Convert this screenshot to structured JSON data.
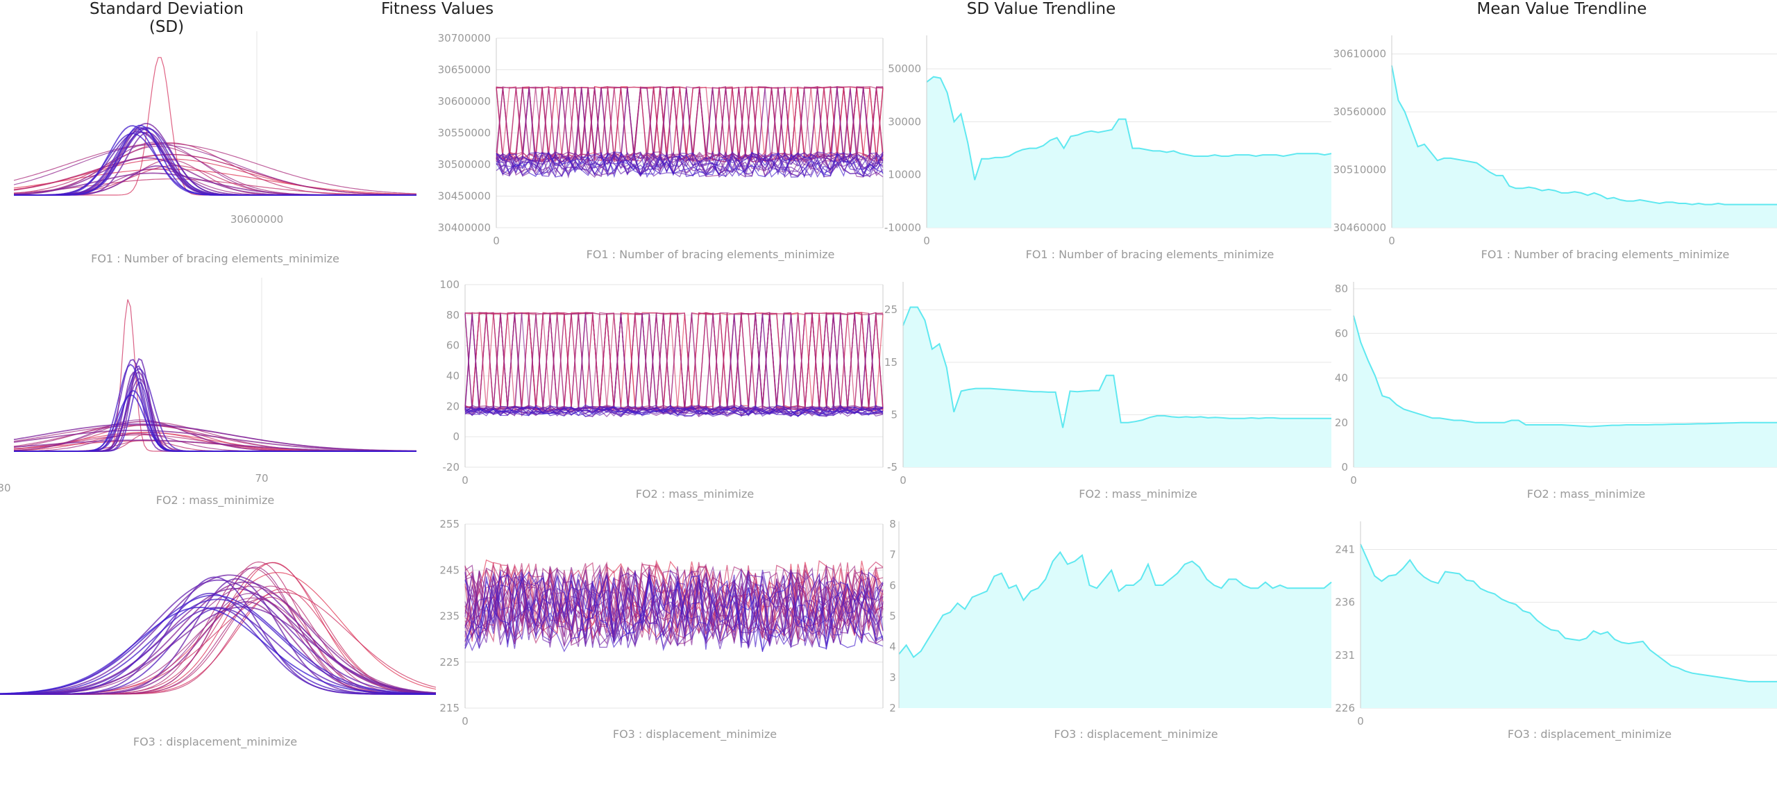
{
  "columns": {
    "sd": "Standard Deviation (SD)",
    "fitness": "Fitness Values",
    "sd_trend": "SD Value Trendline",
    "mean_trend": "Mean Value Trendline"
  },
  "colors": {
    "high": "#e03050",
    "low": "#3a1ad0",
    "trend_line": "#5fe8f0",
    "trend_fill": "#dcfcfc",
    "grid": "#e6e6e6",
    "axis": "#cccccc"
  },
  "chart_data": [
    {
      "id": "fo1",
      "label": "FO1 : Number of bracing elements_minimize",
      "sd": {
        "type": "area",
        "tick_label": "30600000"
      },
      "fitness": {
        "type": "line",
        "y_ticks": [
          "30700000",
          "30650000",
          "30600000",
          "30550000",
          "30500000",
          "30450000",
          "30400000"
        ],
        "ylim": [
          30400000,
          30700000
        ],
        "x_tick": "0",
        "x_count": 60,
        "high_level": 30622000,
        "low_levels": [
          30520000,
          30480000
        ]
      },
      "sd_trend": {
        "type": "area",
        "y_ticks": [
          "50000",
          "30000",
          "10000",
          "-10000"
        ],
        "ylim": [
          -10000,
          60000
        ],
        "x_tick": "0",
        "values": [
          45000,
          47000,
          46500,
          41000,
          30000,
          33000,
          22000,
          8000,
          16000,
          16000,
          16500,
          16500,
          17000,
          18500,
          19500,
          20000,
          20000,
          21000,
          23000,
          24000,
          20000,
          24500,
          25000,
          26000,
          26500,
          26000,
          26500,
          27000,
          31000,
          31000,
          20000,
          20000,
          19500,
          19000,
          19000,
          18500,
          19000,
          18000,
          17500,
          17000,
          17000,
          17000,
          17500,
          17000,
          17000,
          17500,
          17500,
          17500,
          17000,
          17500,
          17500,
          17500,
          17000,
          17500,
          18000,
          18000,
          18000,
          18000,
          17500,
          18000
        ]
      },
      "mean_trend": {
        "type": "area",
        "y_ticks": [
          "30610000",
          "30560000",
          "30510000",
          "30460000"
        ],
        "ylim": [
          30460000,
          30620000
        ],
        "x_tick": "0",
        "values": [
          30600000,
          30570000,
          30560000,
          30545000,
          30530000,
          30532000,
          30525000,
          30518000,
          30520000,
          30520000,
          30519000,
          30518000,
          30517000,
          30516000,
          30512000,
          30508000,
          30505000,
          30505000,
          30496000,
          30494000,
          30494000,
          30495000,
          30494000,
          30492000,
          30493000,
          30492000,
          30490000,
          30490000,
          30491000,
          30490000,
          30488000,
          30490000,
          30488000,
          30485000,
          30486000,
          30484000,
          30483000,
          30483000,
          30484000,
          30483000,
          30482000,
          30481000,
          30482000,
          30482000,
          30481000,
          30481000,
          30480000,
          30481000,
          30480000,
          30480000,
          30481000,
          30480000,
          30480000,
          30480000,
          30480000,
          30480000,
          30480000,
          30480000,
          30480000,
          30480000
        ]
      }
    },
    {
      "id": "fo2",
      "label": "FO2 : mass_minimize",
      "sd": {
        "type": "area",
        "tick_label_left": "30",
        "tick_label": "70"
      },
      "fitness": {
        "type": "line",
        "y_ticks": [
          "100",
          "80",
          "60",
          "40",
          "20",
          "0",
          "-20"
        ],
        "ylim": [
          -20,
          100
        ],
        "x_tick": "0",
        "x_count": 60,
        "high_level": 81,
        "low_levels": [
          20,
          14
        ]
      },
      "sd_trend": {
        "type": "area",
        "y_ticks": [
          "25",
          "15",
          "5",
          "-5"
        ],
        "ylim": [
          -5,
          29
        ],
        "x_tick": "0",
        "values": [
          22,
          25.5,
          25.5,
          23,
          17.5,
          18.5,
          14,
          5.5,
          9.5,
          9.8,
          10,
          10,
          10,
          9.9,
          9.8,
          9.7,
          9.6,
          9.5,
          9.4,
          9.4,
          9.3,
          9.3,
          2.5,
          9.5,
          9.4,
          9.5,
          9.6,
          9.6,
          12.5,
          12.5,
          3.5,
          3.5,
          3.7,
          4,
          4.5,
          4.8,
          4.8,
          4.6,
          4.5,
          4.6,
          4.5,
          4.6,
          4.4,
          4.5,
          4.4,
          4.3,
          4.3,
          4.3,
          4.4,
          4.3,
          4.4,
          4.4,
          4.3,
          4.3,
          4.3,
          4.3,
          4.3,
          4.3,
          4.3,
          4.3
        ]
      },
      "mean_trend": {
        "type": "area",
        "y_ticks": [
          "80",
          "60",
          "40",
          "20",
          "0"
        ],
        "ylim": [
          0,
          80
        ],
        "x_tick": "0",
        "values": [
          68,
          56,
          48,
          41,
          32,
          31,
          28,
          26,
          25,
          24,
          23,
          22,
          22,
          21.5,
          21,
          21,
          20.5,
          20,
          20,
          20,
          20,
          20,
          21,
          21,
          19,
          19,
          19,
          19,
          19,
          19,
          18.8,
          18.6,
          18.4,
          18.2,
          18.4,
          18.6,
          18.8,
          18.8,
          19,
          19,
          19,
          19,
          19.1,
          19.1,
          19.2,
          19.3,
          19.3,
          19.4,
          19.5,
          19.5,
          19.6,
          19.7,
          19.8,
          19.9,
          20,
          20,
          20,
          20,
          20,
          20
        ]
      }
    },
    {
      "id": "fo3",
      "label": "FO3 : displacement_minimize",
      "sd": {
        "type": "area"
      },
      "fitness": {
        "type": "line",
        "y_ticks": [
          "255",
          "245",
          "235",
          "225",
          "215"
        ],
        "ylim": [
          215,
          255
        ],
        "y2_ticks": [
          "8",
          "7",
          "6",
          "5",
          "4",
          "3",
          "2"
        ],
        "y2lim": [
          2,
          8
        ],
        "x_tick": "0",
        "x_count": 60,
        "center": 236,
        "spread": 8
      },
      "sd_trend": {
        "type": "area",
        "y_ticks": [],
        "ylim": [
          2,
          8
        ],
        "x_tick": "",
        "values": [
          3.8,
          4.1,
          3.7,
          3.9,
          4.3,
          4.7,
          5.1,
          5.2,
          5.5,
          5.3,
          5.7,
          5.8,
          5.9,
          6.4,
          6.5,
          6.0,
          6.1,
          5.6,
          5.9,
          6.0,
          6.3,
          6.9,
          7.2,
          6.8,
          6.9,
          7.1,
          6.1,
          6.0,
          6.3,
          6.6,
          5.9,
          6.1,
          6.1,
          6.3,
          6.8,
          6.1,
          6.1,
          6.3,
          6.5,
          6.8,
          6.9,
          6.7,
          6.3,
          6.1,
          6.0,
          6.3,
          6.3,
          6.1,
          6.0,
          6.0,
          6.2,
          6.0,
          6.1,
          6.0,
          6.0,
          6.0,
          6.0,
          6.0,
          6.0,
          6.2
        ]
      },
      "mean_trend": {
        "type": "area",
        "y_ticks": [
          "241",
          "236",
          "231",
          "226"
        ],
        "ylim": [
          226,
          243
        ],
        "x_tick": "0",
        "values": [
          241.5,
          240,
          238.5,
          238,
          238.5,
          238.6,
          239.2,
          240,
          239,
          238.4,
          238,
          237.8,
          238.9,
          238.8,
          238.7,
          238.1,
          238,
          237.3,
          237,
          236.8,
          236.3,
          236,
          235.8,
          235.2,
          235,
          234.3,
          233.8,
          233.4,
          233.3,
          232.6,
          232.5,
          232.4,
          232.6,
          233.3,
          233,
          233.2,
          232.5,
          232.2,
          232.1,
          232.2,
          232.3,
          231.5,
          231,
          230.5,
          230,
          229.8,
          229.5,
          229.3,
          229.2,
          229.1,
          229,
          228.9,
          228.8,
          228.7,
          228.6,
          228.5,
          228.5,
          228.5,
          228.5,
          228.5
        ]
      }
    }
  ]
}
